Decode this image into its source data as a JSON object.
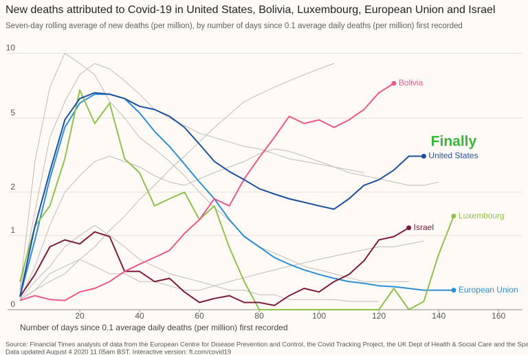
{
  "chart_data": {
    "type": "line",
    "title": "New deaths attributed to Covid-19 in United States, Bolivia, Luxembourg, European Union and Israel",
    "subtitle": "Seven-day rolling average of new deaths (per million), by number of days since 0.1 average daily deaths (per million) first recorded",
    "x_label": "Number of days since 0.1 average daily deaths (per million) first recorded",
    "source": "Source: Financial Times analysis of data from the European Centre for Disease Prevention and Control, the Covid Tracking Project, the UK Dept of Health & Social Care and the Spanish Ministry of Health",
    "note": "Data updated August 4 2020 11.05am BST. Interactive version: ft.com/covid19",
    "annotations": [
      {
        "text": "Finally",
        "x": 145,
        "y": 3.8
      }
    ],
    "yscale": "log1p",
    "xlim": [
      0,
      168
    ],
    "ylim": [
      0,
      11
    ],
    "xticks": [
      20,
      40,
      60,
      80,
      100,
      120,
      140,
      160
    ],
    "yticks": [
      0,
      1,
      2,
      5,
      10
    ],
    "grid": true,
    "x": [
      0,
      5,
      10,
      15,
      20,
      25,
      30,
      35,
      40,
      45,
      50,
      55,
      60,
      65,
      70,
      75,
      80,
      85,
      90,
      95,
      100,
      105,
      110,
      115,
      120,
      125,
      130,
      135,
      140,
      145,
      150
    ],
    "series": [
      {
        "color": "#c2bab2",
        "values": [
          0.2,
          3,
          7,
          10,
          9,
          8,
          6,
          5,
          4,
          3.5,
          3,
          2.5,
          2,
          1.6,
          1.3,
          1,
          0.8,
          0.7,
          0.6,
          0.5,
          0.45,
          0.4,
          0.35,
          0.3,
          0.3,
          0.3,
          0.3,
          null,
          null,
          null,
          null
        ]
      },
      {
        "color": "#c2bab2",
        "values": [
          0.1,
          0.5,
          1.2,
          2,
          2.5,
          3,
          3.2,
          3,
          2.8,
          2.5,
          2.3,
          2.2,
          2.4,
          2.6,
          2.8,
          3,
          3.3,
          3.5,
          3.4,
          3.2,
          3,
          2.8,
          2.6,
          2.5,
          2.4,
          2.3,
          2.2,
          2.2,
          2.3,
          null,
          null
        ]
      },
      {
        "color": "#c2bab2",
        "values": [
          0.1,
          0.3,
          0.5,
          0.8,
          1,
          1.2,
          1,
          0.8,
          0.6,
          0.5,
          0.4,
          0.35,
          0.3,
          0.25,
          0.2,
          0.2,
          0.15,
          0.15,
          0.1,
          0.1,
          0.1,
          0.1,
          0.08,
          0.08,
          0.08,
          null,
          null,
          null,
          null,
          null,
          null
        ]
      },
      {
        "color": "#c2bab2",
        "values": [
          0.2,
          1.5,
          4,
          6,
          8,
          9,
          8.5,
          7.5,
          6.5,
          5.5,
          5,
          4.6,
          4.2,
          4,
          3.8,
          3.6,
          3.5,
          3.3,
          3.1,
          3,
          2.9,
          2.8,
          2.7,
          2.6,
          null,
          null,
          null,
          null,
          null,
          null,
          null
        ]
      },
      {
        "color": "#c2bab2",
        "values": [
          0.1,
          0.2,
          0.3,
          0.4,
          0.6,
          0.8,
          1.1,
          1.4,
          1.8,
          2.2,
          2.7,
          3.2,
          3.8,
          4.5,
          5.2,
          6,
          6.5,
          7,
          7.5,
          8,
          8.5,
          9,
          null,
          null,
          null,
          null,
          null,
          null,
          null,
          null,
          null
        ]
      },
      {
        "color": "#c2bab2",
        "values": [
          0.1,
          0.2,
          0.4,
          0.5,
          0.6,
          0.5,
          0.4,
          0.4,
          0.3,
          0.3,
          0.25,
          0.2,
          0.2,
          0.25,
          0.3,
          0.35,
          0.4,
          0.45,
          0.5,
          0.55,
          0.6,
          0.65,
          0.7,
          0.75,
          0.8,
          0.8,
          0.85,
          0.9,
          null,
          null,
          null
        ]
      },
      {
        "name": "European Union",
        "color": "#2a8fd4",
        "values": [
          0.13,
          0.92,
          2.4,
          4.5,
          5.9,
          6.5,
          6.5,
          6.2,
          5.3,
          4.3,
          3.6,
          2.9,
          2.3,
          1.82,
          1.32,
          0.98,
          0.8,
          0.63,
          0.53,
          0.45,
          0.39,
          0.34,
          0.3,
          0.28,
          0.25,
          0.24,
          0.22,
          0.2,
          0.2,
          0.2,
          null
        ]
      },
      {
        "name": "Luxembourg",
        "color": "#8fc04e",
        "values": [
          0.3,
          1.18,
          1.64,
          3.1,
          6.8,
          4.7,
          5.9,
          3.1,
          2.6,
          1.64,
          1.82,
          2.0,
          1.32,
          1.64,
          0.79,
          0.3,
          0,
          0,
          0,
          0,
          0,
          0,
          0,
          0,
          0,
          0.22,
          0,
          0.08,
          0.68,
          1.4,
          null
        ]
      },
      {
        "name": "Israel",
        "color": "#7b1b3c",
        "values": [
          0.13,
          0.39,
          0.8,
          0.92,
          0.85,
          1.07,
          0.98,
          0.43,
          0.43,
          0.3,
          0.34,
          0.18,
          0.07,
          0.11,
          0.14,
          0.07,
          0.07,
          0.04,
          0.14,
          0.22,
          0.18,
          0.3,
          0.39,
          0.58,
          0.92,
          0.98,
          1.15,
          null,
          null,
          null,
          null
        ]
      },
      {
        "name": "Bolivia",
        "color": "#e9588a",
        "values": [
          0.09,
          0.14,
          0.1,
          0.09,
          0.18,
          0.22,
          0.3,
          0.43,
          0.53,
          0.63,
          0.74,
          1.04,
          1.32,
          1.82,
          1.64,
          2.4,
          3.15,
          4.0,
          5.1,
          4.7,
          4.9,
          4.5,
          4.9,
          5.5,
          6.6,
          7.3,
          null,
          null,
          null,
          null,
          null
        ]
      },
      {
        "name": "United States",
        "color": "#1b4f9c",
        "values": [
          0.13,
          1.18,
          2.64,
          4.9,
          6.2,
          6.6,
          6.5,
          6.2,
          5.7,
          5.5,
          5.1,
          4.5,
          3.7,
          3.0,
          2.64,
          2.37,
          2.1,
          1.95,
          1.82,
          1.73,
          1.64,
          1.56,
          1.82,
          2.2,
          2.37,
          2.69,
          3.2,
          3.2,
          null,
          null,
          null
        ]
      }
    ]
  }
}
